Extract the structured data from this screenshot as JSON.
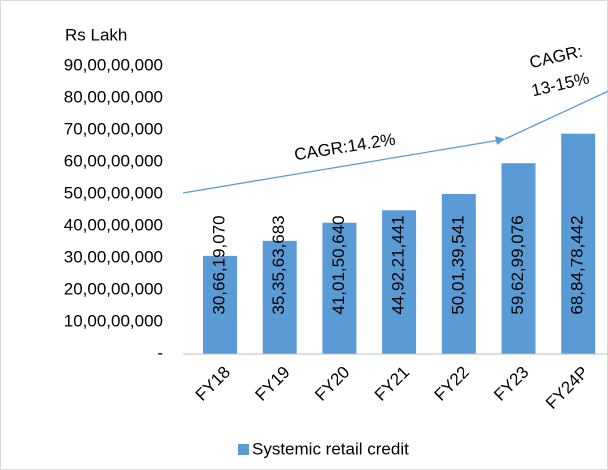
{
  "chart_data": {
    "type": "bar",
    "y_label": "Rs Lakh",
    "categories": [
      "FY18",
      "FY19",
      "FY20",
      "FY21",
      "FY22",
      "FY23",
      "FY24P"
    ],
    "series": [
      {
        "name": "Systemic retail credit",
        "color": "#5b9bd5",
        "values": [
          306619070,
          353563683,
          410150640,
          449221441,
          500139541,
          596299076,
          688478442
        ],
        "value_labels": [
          "30,66,19,070",
          "35,35,63,683",
          "41,01,50,640",
          "44,92,21,441",
          "50,01,39,541",
          "59,62,99,076",
          "68,84,78,442"
        ]
      }
    ],
    "ylim": [
      0,
      900000000
    ],
    "yticks": [
      {
        "value": 0,
        "label": "-"
      },
      {
        "value": 100000000,
        "label": "10,00,00,000"
      },
      {
        "value": 200000000,
        "label": "20,00,00,000"
      },
      {
        "value": 300000000,
        "label": "30,00,00,000"
      },
      {
        "value": 400000000,
        "label": "40,00,00,000"
      },
      {
        "value": 500000000,
        "label": "50,00,00,000"
      },
      {
        "value": 600000000,
        "label": "60,00,00,000"
      },
      {
        "value": 700000000,
        "label": "70,00,00,000"
      },
      {
        "value": 800000000,
        "label": "80,00,00,000"
      },
      {
        "value": 900000000,
        "label": "90,00,00,000"
      }
    ],
    "annotations": [
      "CAGR:14.2%",
      "CAGR:",
      "13-15%"
    ],
    "legend": "bottom"
  }
}
